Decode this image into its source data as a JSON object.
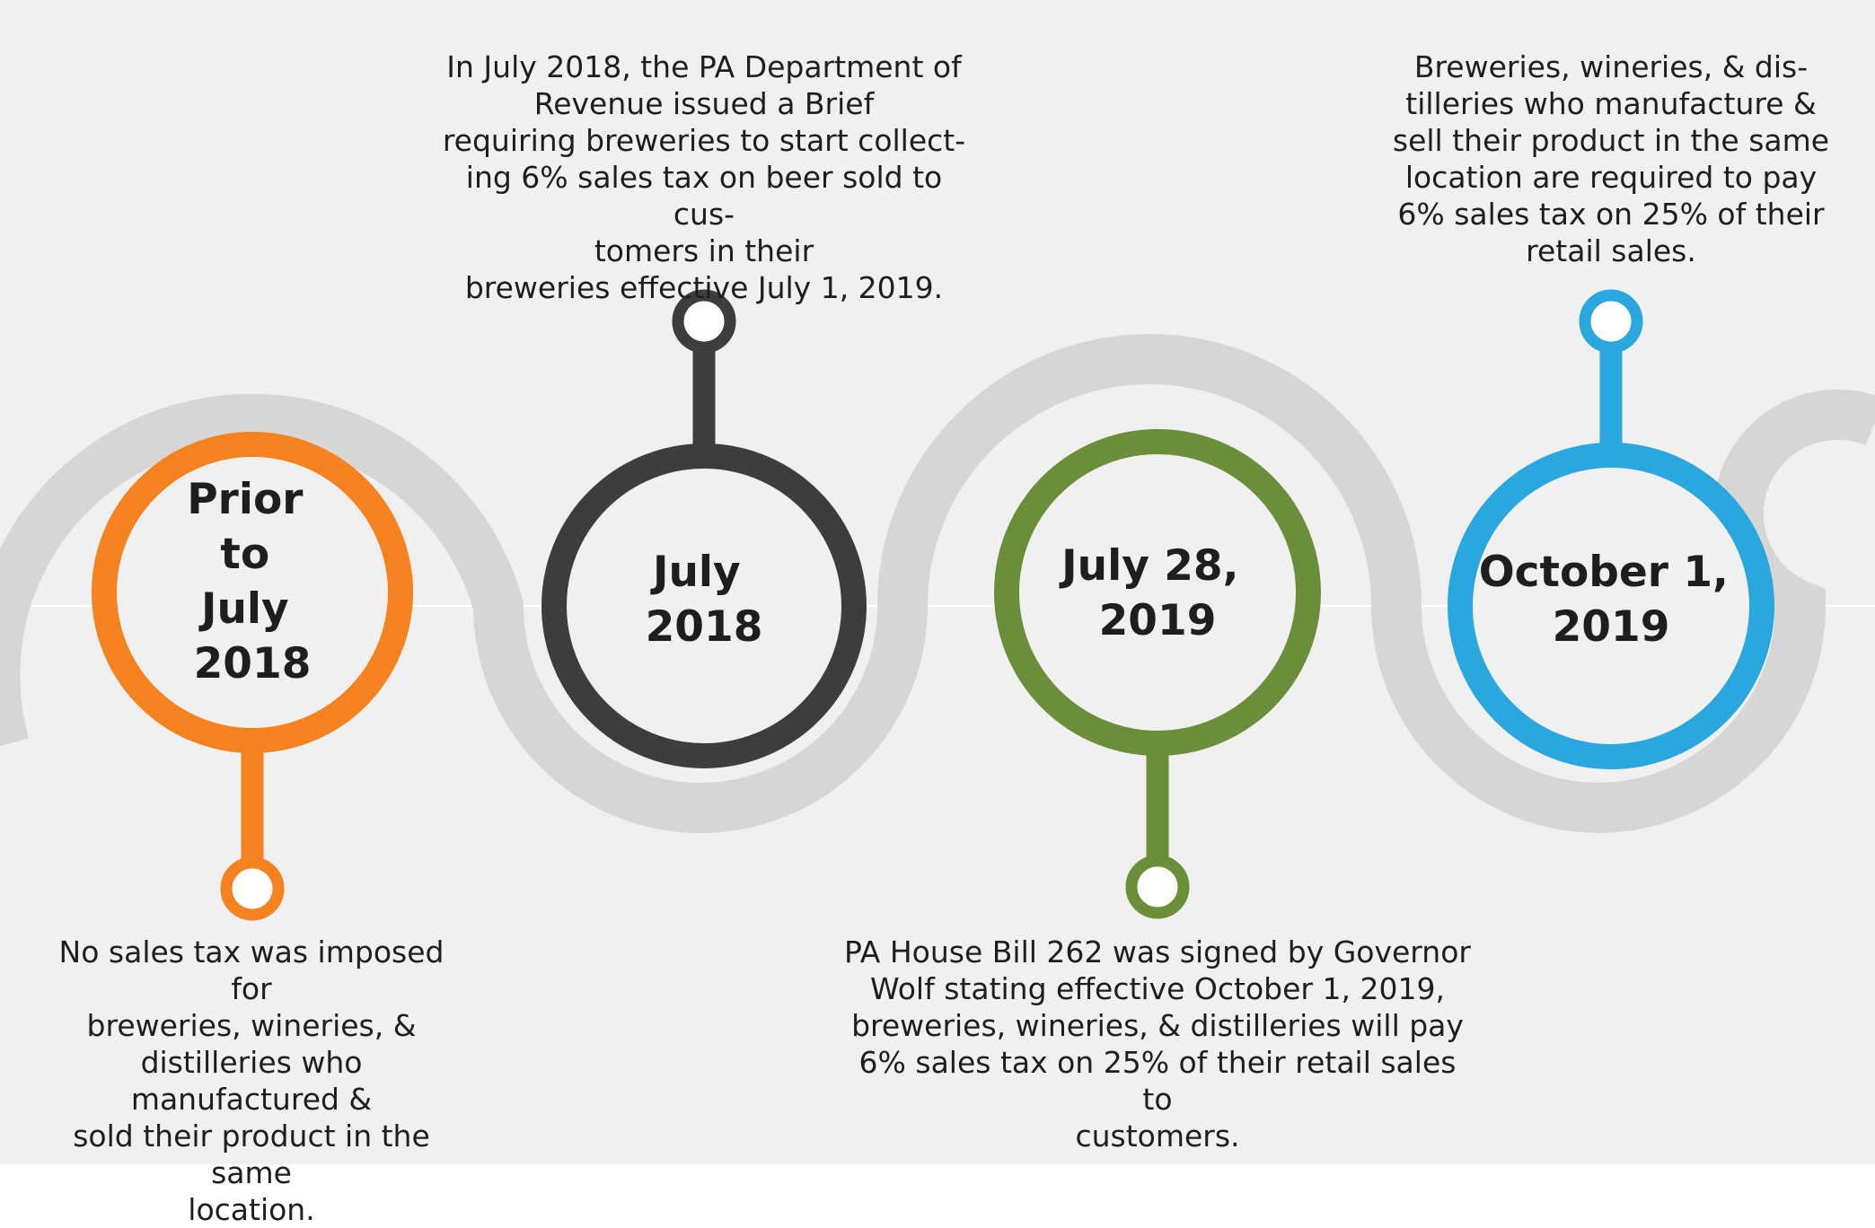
{
  "colors": {
    "background": "#f0f0f0",
    "road": "#d6d6d6",
    "event_1": "#f5821f",
    "event_2": "#3d3d3f",
    "event_3": "#6b8e38",
    "event_4": "#2aa7df"
  },
  "events": [
    {
      "date_lines": [
        "Prior",
        "to",
        "July",
        "2018"
      ],
      "description": "No sales tax was imposed for\nbreweries, wineries, &\ndistilleries who manufactured &\nsold their product in the same\nlocation."
    },
    {
      "date_lines": [
        "July",
        "2018"
      ],
      "description": "In July 2018, the PA Department of\nRevenue issued a Brief\nrequiring breweries to start collect-\ning 6% sales tax on beer sold to cus-\ntomers in their\nbreweries effective July 1, 2019."
    },
    {
      "date_lines": [
        "July 28,",
        "2019"
      ],
      "description": "PA House Bill 262 was signed by Governor\nWolf stating effective October 1, 2019,\nbreweries, wineries, & distilleries will pay\n6% sales tax on 25% of their retail sales to\ncustomers."
    },
    {
      "date_lines": [
        "October 1,",
        "2019"
      ],
      "description": "Breweries, wineries, & dis-\ntilleries who manufacture &\nsell their product in the same\nlocation are required to pay\n6% sales tax on 25% of their\nretail sales."
    }
  ]
}
